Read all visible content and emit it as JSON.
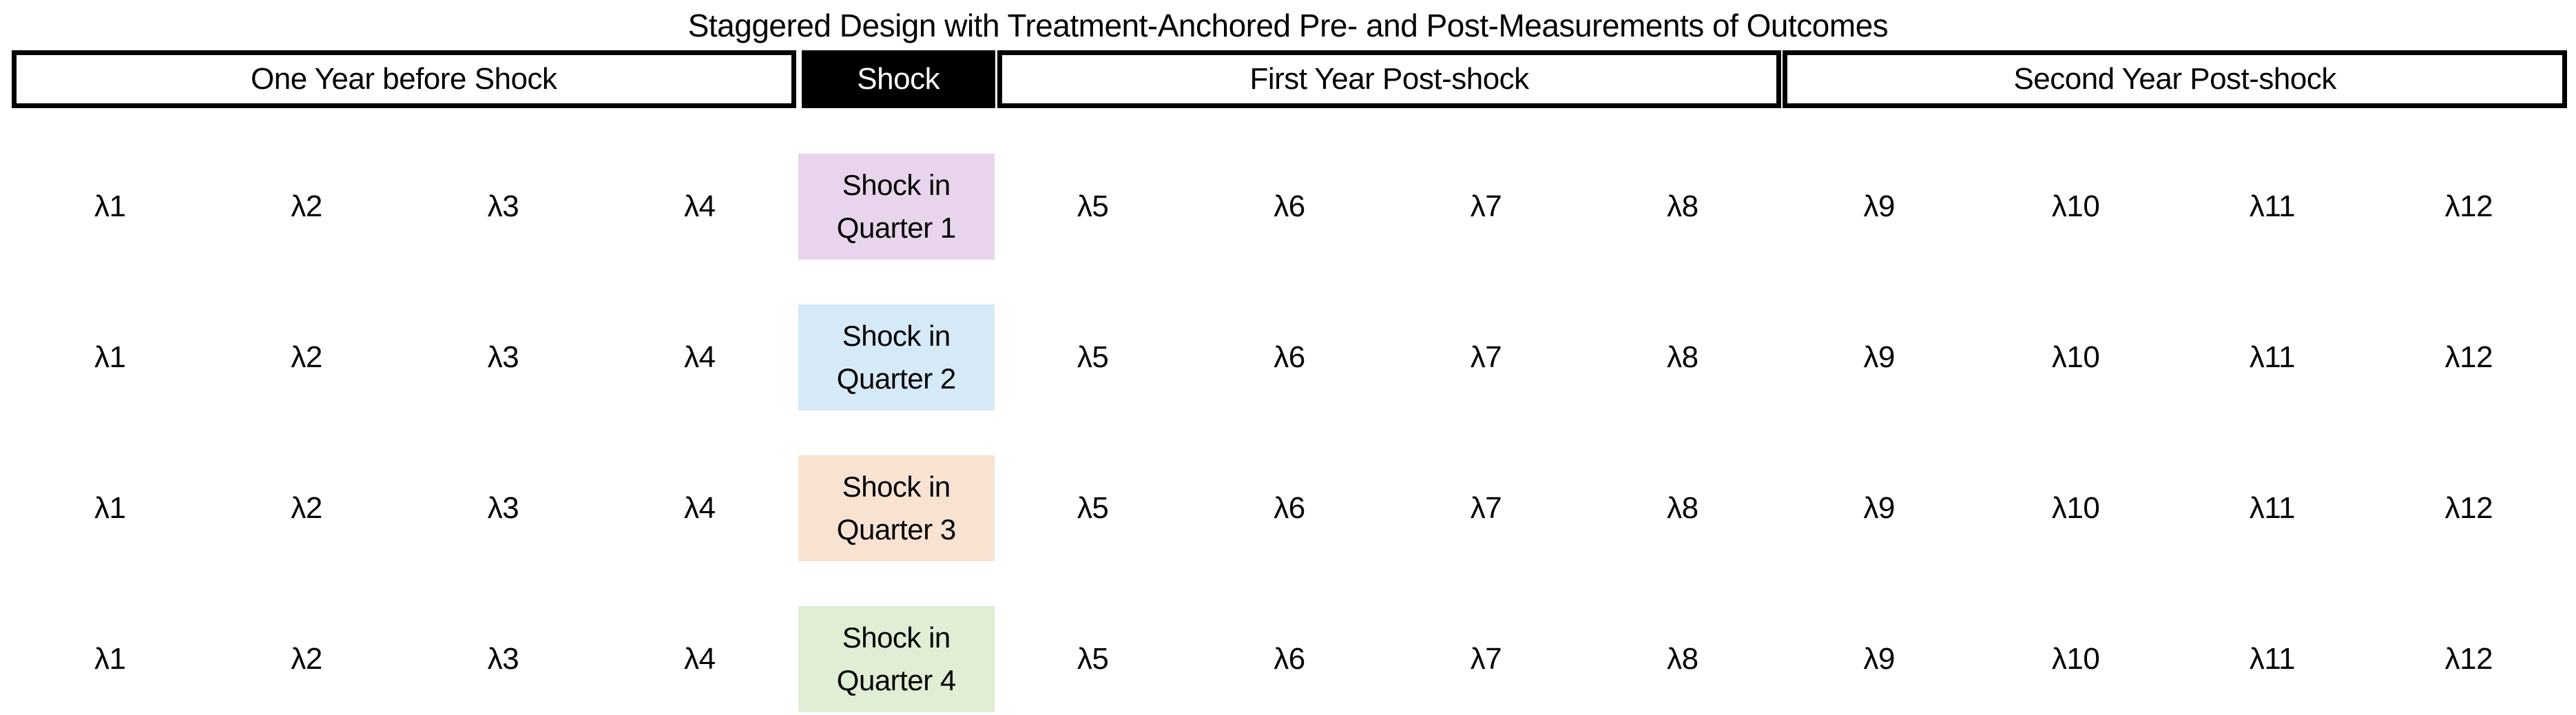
{
  "title": "Staggered Design with Treatment-Anchored Pre- and Post-Measurements of Outcomes",
  "header": {
    "pre": "One Year before Shock",
    "shock": "Shock",
    "post1": "First Year Post-shock",
    "post2": "Second Year Post-shock"
  },
  "colors": {
    "q1": "#e8d4ec",
    "q2": "#d5e9f6",
    "q3": "#f8e3d3",
    "q4": "#dfeed4"
  },
  "rows": [
    {
      "shock_line1": "Shock in",
      "shock_line2": "Quarter 1",
      "color_key": "q1",
      "pre": [
        "λ1",
        "λ2",
        "λ3",
        "λ4"
      ],
      "post": [
        "λ5",
        "λ6",
        "λ7",
        "λ8",
        "λ9",
        "λ10",
        "λ11",
        "λ12"
      ]
    },
    {
      "shock_line1": "Shock in",
      "shock_line2": "Quarter 2",
      "color_key": "q2",
      "pre": [
        "λ1",
        "λ2",
        "λ3",
        "λ4"
      ],
      "post": [
        "λ5",
        "λ6",
        "λ7",
        "λ8",
        "λ9",
        "λ10",
        "λ11",
        "λ12"
      ]
    },
    {
      "shock_line1": "Shock in",
      "shock_line2": "Quarter 3",
      "color_key": "q3",
      "pre": [
        "λ1",
        "λ2",
        "λ3",
        "λ4"
      ],
      "post": [
        "λ5",
        "λ6",
        "λ7",
        "λ8",
        "λ9",
        "λ10",
        "λ11",
        "λ12"
      ]
    },
    {
      "shock_line1": "Shock in",
      "shock_line2": "Quarter 4",
      "color_key": "q4",
      "pre": [
        "λ1",
        "λ2",
        "λ3",
        "λ4"
      ],
      "post": [
        "λ5",
        "λ6",
        "λ7",
        "λ8",
        "λ9",
        "λ10",
        "λ11",
        "λ12"
      ]
    }
  ],
  "layout": {
    "row_tops": [
      223,
      442,
      661,
      880
    ]
  }
}
